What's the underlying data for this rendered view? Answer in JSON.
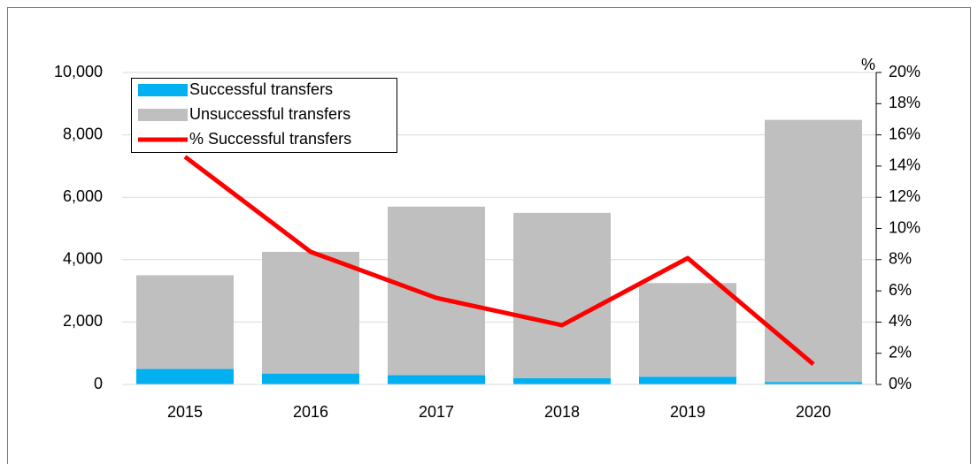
{
  "chart_data": {
    "type": "bar-line",
    "categories": [
      "2015",
      "2016",
      "2017",
      "2018",
      "2019",
      "2020"
    ],
    "series": [
      {
        "name": "Successful transfers",
        "type": "bar",
        "color": "#00b0f0",
        "values": [
          500,
          350,
          300,
          200,
          250,
          80
        ]
      },
      {
        "name": "Unsuccessful transfers",
        "type": "bar",
        "color": "#bfbfbf",
        "values": [
          3000,
          3900,
          5400,
          5300,
          3000,
          8400
        ]
      },
      {
        "name": "% Successful transfers",
        "type": "line",
        "axis": "y2",
        "color": "#ff0000",
        "values": [
          14.6,
          8.5,
          5.55,
          3.8,
          8.1,
          1.3
        ]
      }
    ],
    "stacked": true,
    "ylim": [
      0,
      10000
    ],
    "yticks": [
      0,
      {
        "value": 2000,
        "label": "2,000"
      },
      {
        "value": 4000,
        "label": "4,000"
      },
      {
        "value": 6000,
        "label": "6,000"
      },
      {
        "value": 8000,
        "label": "8,000"
      },
      {
        "value": 10000,
        "label": "10,000"
      }
    ],
    "y2label": "%",
    "y2lim": [
      0,
      20
    ],
    "y2ticks": [
      {
        "value": 0,
        "label": "0%"
      },
      {
        "value": 2,
        "label": "2%"
      },
      {
        "value": 4,
        "label": "4%"
      },
      {
        "value": 6,
        "label": "6%"
      },
      {
        "value": 8,
        "label": "8%"
      },
      {
        "value": 10,
        "label": "10%"
      },
      {
        "value": 12,
        "label": "12%"
      },
      {
        "value": 14,
        "label": "14%"
      },
      {
        "value": 16,
        "label": "16%"
      },
      {
        "value": 18,
        "label": "18%"
      },
      {
        "value": 20,
        "label": "20%"
      }
    ],
    "grid": true,
    "legend": "upper left"
  }
}
